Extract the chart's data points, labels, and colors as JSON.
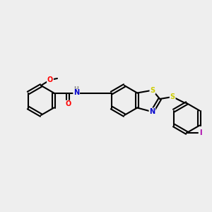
{
  "bg_color": "#eeeeee",
  "bond_color": "#000000",
  "atom_colors": {
    "O": "#ff0000",
    "N": "#0000cc",
    "S": "#cccc00",
    "I": "#aa00aa",
    "H": "#888888",
    "C": "#000000"
  },
  "figsize": [
    3.0,
    3.0
  ],
  "dpi": 100,
  "lw": 1.5,
  "fs": 7.0
}
